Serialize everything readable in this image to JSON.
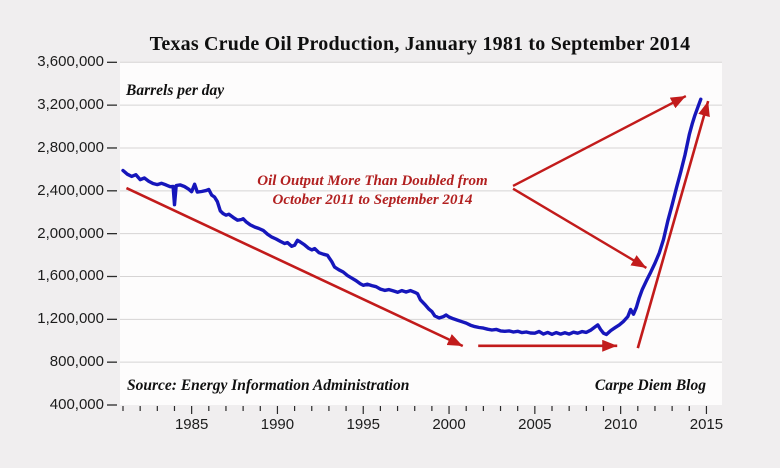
{
  "chart_data": {
    "type": "line",
    "title": "Texas Crude Oil Production, January 1981 to September 2014",
    "ylabel": "Barrels per day",
    "xlabel": "",
    "source_note": "Source: Energy Information Administration",
    "credit": "Carpe Diem Blog",
    "callout": {
      "line1": "Oil Output More Than Doubled from",
      "line2": "October 2011 to September 2014"
    },
    "colors": {
      "series": "#1616bb",
      "arrows": "#c21b1b",
      "callout_text": "#b22020",
      "background": "#f0eeef",
      "plot_background": "#fdfcfc",
      "gridline": "#d6d4d4",
      "axis_text": "#1c1c1c",
      "tick": "#2a2a2a"
    },
    "x_range": [
      1981,
      2015.9
    ],
    "y_range": [
      400000,
      3600000
    ],
    "grid": "horizontal",
    "legend": "none",
    "y_ticks": {
      "values": [
        3600000,
        3200000,
        2800000,
        2400000,
        2000000,
        1600000,
        1200000,
        800000,
        400000
      ],
      "labels": [
        "3,600,000",
        "3,200,000",
        "2,800,000",
        "2,400,000",
        "2,000,000",
        "1,600,000",
        "1,200,000",
        "800,000",
        "400,000"
      ]
    },
    "x_major_ticks": [
      {
        "year": 1985,
        "label": "1985"
      },
      {
        "year": 1990,
        "label": "1990"
      },
      {
        "year": 1995,
        "label": "1995"
      },
      {
        "year": 2000,
        "label": "2000"
      },
      {
        "year": 2005,
        "label": "2005"
      },
      {
        "year": 2010,
        "label": "2010"
      },
      {
        "year": 2015,
        "label": "2015"
      }
    ],
    "x_minor_tick_interval": 1,
    "series": [
      {
        "name": "Texas crude oil production (barrels per day)",
        "points": [
          [
            1981.0,
            2590000
          ],
          [
            1981.25,
            2555000
          ],
          [
            1981.5,
            2535000
          ],
          [
            1981.75,
            2550000
          ],
          [
            1982.0,
            2505000
          ],
          [
            1982.25,
            2520000
          ],
          [
            1982.5,
            2490000
          ],
          [
            1982.75,
            2468000
          ],
          [
            1983.0,
            2458000
          ],
          [
            1983.25,
            2470000
          ],
          [
            1983.5,
            2455000
          ],
          [
            1983.75,
            2438000
          ],
          [
            1983.92,
            2440000
          ],
          [
            1984.0,
            2270000
          ],
          [
            1984.1,
            2450000
          ],
          [
            1984.33,
            2455000
          ],
          [
            1984.58,
            2440000
          ],
          [
            1984.83,
            2415000
          ],
          [
            1985.0,
            2392000
          ],
          [
            1985.17,
            2462000
          ],
          [
            1985.33,
            2388000
          ],
          [
            1985.58,
            2394000
          ],
          [
            1985.83,
            2402000
          ],
          [
            1986.0,
            2412000
          ],
          [
            1986.17,
            2360000
          ],
          [
            1986.33,
            2342000
          ],
          [
            1986.5,
            2298000
          ],
          [
            1986.67,
            2212000
          ],
          [
            1986.83,
            2188000
          ],
          [
            1987.0,
            2172000
          ],
          [
            1987.17,
            2182000
          ],
          [
            1987.42,
            2152000
          ],
          [
            1987.67,
            2126000
          ],
          [
            1987.92,
            2132000
          ],
          [
            1988.0,
            2140000
          ],
          [
            1988.17,
            2112000
          ],
          [
            1988.42,
            2082000
          ],
          [
            1988.67,
            2062000
          ],
          [
            1988.92,
            2048000
          ],
          [
            1989.17,
            2030000
          ],
          [
            1989.42,
            1995000
          ],
          [
            1989.67,
            1968000
          ],
          [
            1989.92,
            1950000
          ],
          [
            1990.17,
            1928000
          ],
          [
            1990.42,
            1908000
          ],
          [
            1990.58,
            1916000
          ],
          [
            1990.83,
            1882000
          ],
          [
            1991.0,
            1892000
          ],
          [
            1991.17,
            1938000
          ],
          [
            1991.33,
            1922000
          ],
          [
            1991.58,
            1895000
          ],
          [
            1991.83,
            1862000
          ],
          [
            1992.0,
            1848000
          ],
          [
            1992.17,
            1860000
          ],
          [
            1992.42,
            1822000
          ],
          [
            1992.67,
            1808000
          ],
          [
            1992.92,
            1798000
          ],
          [
            1993.0,
            1778000
          ],
          [
            1993.17,
            1738000
          ],
          [
            1993.33,
            1688000
          ],
          [
            1993.58,
            1662000
          ],
          [
            1993.83,
            1642000
          ],
          [
            1994.08,
            1608000
          ],
          [
            1994.33,
            1585000
          ],
          [
            1994.58,
            1562000
          ],
          [
            1994.83,
            1532000
          ],
          [
            1995.0,
            1518000
          ],
          [
            1995.25,
            1528000
          ],
          [
            1995.5,
            1515000
          ],
          [
            1995.75,
            1505000
          ],
          [
            1996.0,
            1482000
          ],
          [
            1996.25,
            1470000
          ],
          [
            1996.5,
            1478000
          ],
          [
            1996.75,
            1465000
          ],
          [
            1997.0,
            1452000
          ],
          [
            1997.25,
            1468000
          ],
          [
            1997.5,
            1455000
          ],
          [
            1997.75,
            1468000
          ],
          [
            1998.0,
            1452000
          ],
          [
            1998.17,
            1438000
          ],
          [
            1998.33,
            1382000
          ],
          [
            1998.58,
            1340000
          ],
          [
            1998.83,
            1295000
          ],
          [
            1999.0,
            1272000
          ],
          [
            1999.17,
            1232000
          ],
          [
            1999.42,
            1212000
          ],
          [
            1999.67,
            1225000
          ],
          [
            1999.83,
            1240000
          ],
          [
            2000.0,
            1222000
          ],
          [
            2000.25,
            1205000
          ],
          [
            2000.5,
            1192000
          ],
          [
            2000.75,
            1178000
          ],
          [
            2001.0,
            1165000
          ],
          [
            2001.25,
            1145000
          ],
          [
            2001.5,
            1132000
          ],
          [
            2001.75,
            1124000
          ],
          [
            2002.0,
            1118000
          ],
          [
            2002.25,
            1108000
          ],
          [
            2002.5,
            1100000
          ],
          [
            2002.75,
            1106000
          ],
          [
            2003.0,
            1092000
          ],
          [
            2003.25,
            1088000
          ],
          [
            2003.5,
            1092000
          ],
          [
            2003.75,
            1082000
          ],
          [
            2004.0,
            1088000
          ],
          [
            2004.25,
            1076000
          ],
          [
            2004.5,
            1082000
          ],
          [
            2004.75,
            1072000
          ],
          [
            2005.0,
            1070000
          ],
          [
            2005.25,
            1086000
          ],
          [
            2005.5,
            1062000
          ],
          [
            2005.75,
            1078000
          ],
          [
            2006.0,
            1060000
          ],
          [
            2006.25,
            1076000
          ],
          [
            2006.5,
            1062000
          ],
          [
            2006.75,
            1075000
          ],
          [
            2007.0,
            1062000
          ],
          [
            2007.25,
            1080000
          ],
          [
            2007.5,
            1070000
          ],
          [
            2007.75,
            1085000
          ],
          [
            2008.0,
            1078000
          ],
          [
            2008.25,
            1098000
          ],
          [
            2008.5,
            1128000
          ],
          [
            2008.67,
            1148000
          ],
          [
            2008.83,
            1105000
          ],
          [
            2009.0,
            1070000
          ],
          [
            2009.17,
            1058000
          ],
          [
            2009.42,
            1095000
          ],
          [
            2009.67,
            1122000
          ],
          [
            2009.92,
            1148000
          ],
          [
            2010.17,
            1182000
          ],
          [
            2010.42,
            1225000
          ],
          [
            2010.58,
            1292000
          ],
          [
            2010.75,
            1248000
          ],
          [
            2010.92,
            1312000
          ],
          [
            2011.08,
            1400000
          ],
          [
            2011.25,
            1475000
          ],
          [
            2011.5,
            1560000
          ],
          [
            2011.75,
            1640000
          ],
          [
            2012.0,
            1725000
          ],
          [
            2012.25,
            1820000
          ],
          [
            2012.5,
            1945000
          ],
          [
            2012.75,
            2118000
          ],
          [
            2013.0,
            2268000
          ],
          [
            2013.25,
            2425000
          ],
          [
            2013.5,
            2575000
          ],
          [
            2013.75,
            2735000
          ],
          [
            2014.0,
            2925000
          ],
          [
            2014.17,
            3025000
          ],
          [
            2014.33,
            3105000
          ],
          [
            2014.5,
            3182000
          ],
          [
            2014.67,
            3255000
          ]
        ]
      }
    ],
    "arrows": [
      {
        "name": "decline-trend-arrow",
        "from": [
          1981.2,
          2426000
        ],
        "to": [
          2000.8,
          951000
        ],
        "width": 2.6
      },
      {
        "name": "flat-trend-arrow",
        "from": [
          2001.7,
          953000
        ],
        "to": [
          2009.8,
          953000
        ],
        "width": 2.6
      },
      {
        "name": "rise-trend-arrow",
        "from": [
          2011.0,
          931000
        ],
        "to": [
          2015.1,
          3238000
        ],
        "width": 2.6
      },
      {
        "name": "callout-arrow-to-peak",
        "from": [
          2003.73,
          2445000
        ],
        "to": [
          2013.8,
          3285000
        ],
        "width": 2.4
      },
      {
        "name": "callout-arrow-to-upturn",
        "from": [
          2003.73,
          2420000
        ],
        "to": [
          2011.5,
          1680000
        ],
        "width": 2.4
      }
    ]
  }
}
